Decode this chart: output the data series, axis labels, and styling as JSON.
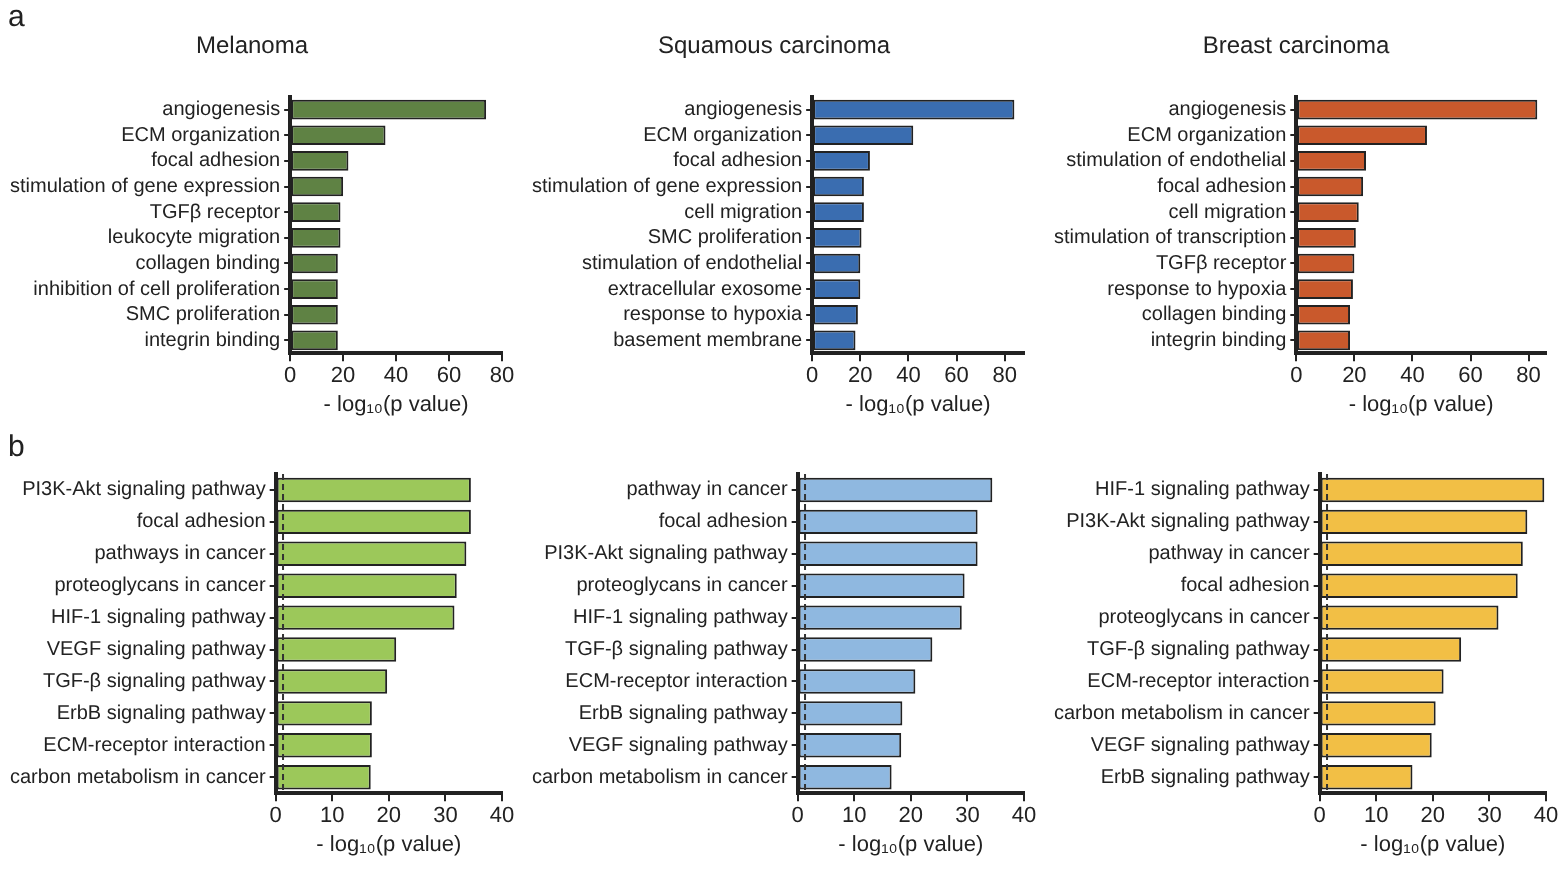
{
  "chart_data": [
    {
      "type": "bar",
      "orientation": "horizontal",
      "title": "Melanoma",
      "xlabel": "- log₁₀(p value)",
      "annotations": [
        "a"
      ],
      "categories": [
        "angiogenesis",
        "ECM organization",
        "focal adhesion",
        "stimulation of gene expression",
        "TGFβ receptor",
        "leukocyte migration",
        "collagen binding",
        "inhibition of cell proliferation",
        "SMC proliferation",
        "integrin binding"
      ],
      "values": [
        74,
        36,
        22,
        20,
        19,
        19,
        18,
        18,
        18,
        18
      ],
      "color": "#5f8244",
      "xlim": [
        0,
        80
      ],
      "xticks": [
        0,
        20,
        40,
        60,
        80
      ]
    },
    {
      "type": "bar",
      "orientation": "horizontal",
      "title": "Squamous carcinoma",
      "xlabel": "- log₁₀(p value)",
      "categories": [
        "angiogenesis",
        "ECM organization",
        "focal adhesion",
        "stimulation of gene expression",
        "cell migration",
        "SMC proliferation",
        "stimulation of endothelial",
        "extracellular exosome",
        "response to hypoxia",
        "basement membrane"
      ],
      "values": [
        84,
        42,
        24,
        21.5,
        21.5,
        20.5,
        20,
        20,
        19,
        18
      ],
      "color": "#3a6db0",
      "xlim": [
        0,
        88
      ],
      "xticks": [
        0,
        20,
        40,
        60,
        80
      ]
    },
    {
      "type": "bar",
      "orientation": "horizontal",
      "title": "Breast carcinoma",
      "xlabel": "- log₁₀(p value)",
      "categories": [
        "angiogenesis",
        "ECM organization",
        "stimulation of endothelial",
        "focal adhesion",
        "cell migration",
        "stimulation of transcription",
        "TGFβ receptor",
        "response to hypoxia",
        "collagen binding",
        "integrin binding"
      ],
      "values": [
        83,
        45,
        24,
        23,
        21.5,
        20.5,
        20,
        19.5,
        18.5,
        18.5
      ],
      "color": "#c9592c",
      "xlim": [
        0,
        86
      ],
      "xticks": [
        0,
        20,
        40,
        60,
        80
      ]
    },
    {
      "type": "bar",
      "orientation": "horizontal",
      "xlabel": "- log₁₀(p value)",
      "annotations": [
        "b"
      ],
      "categories": [
        "PI3K-Akt signaling pathway",
        "focal adhesion",
        "pathways in cancer",
        "proteoglycans in cancer",
        "HIF-1 signaling pathway",
        "VEGF signaling pathway",
        "TGF-β signaling pathway",
        "ErbB signaling pathway",
        "ECM-receptor interaction",
        "carbon metabolism in cancer"
      ],
      "values": [
        34.5,
        34.5,
        33.7,
        32,
        31.6,
        21.3,
        19.7,
        17,
        17,
        16.8
      ],
      "color": "#9cc85a",
      "xlim": [
        0,
        40
      ],
      "xticks": [
        0,
        10,
        20,
        30,
        40
      ],
      "ref_lines": [
        {
          "axis": "x",
          "value": 1.3,
          "line_style": "dashed",
          "color": "#333333"
        }
      ]
    },
    {
      "type": "bar",
      "orientation": "horizontal",
      "xlabel": "- log₁₀(p value)",
      "categories": [
        "pathway in cancer",
        "focal adhesion",
        "PI3K-Akt signaling pathway",
        "proteoglycans in cancer",
        "HIF-1 signaling pathway",
        "TGF-β signaling pathway",
        "ECM-receptor interaction",
        "ErbB signaling pathway",
        "VEGF signaling pathway",
        "carbon metabolism in cancer"
      ],
      "values": [
        34.4,
        31.8,
        31.8,
        29.5,
        29,
        23.8,
        20.8,
        18.5,
        18.3,
        16.6
      ],
      "color": "#8fb8e0",
      "xlim": [
        0,
        40
      ],
      "xticks": [
        0,
        10,
        20,
        30,
        40
      ],
      "ref_lines": [
        {
          "axis": "x",
          "value": 1.3,
          "line_style": "dashed",
          "color": "#333333"
        }
      ]
    },
    {
      "type": "bar",
      "orientation": "horizontal",
      "xlabel": "- log₁₀(p value)",
      "categories": [
        "HIF-1 signaling pathway",
        "PI3K-Akt signaling pathway",
        "pathway in cancer",
        "focal adhesion",
        "proteoglycans in cancer",
        "TGF-β signaling pathway",
        "ECM-receptor interaction",
        "carbon metabolism in cancer",
        "VEGF signaling pathway",
        "ErbB signaling pathway"
      ],
      "values": [
        39.7,
        36.7,
        35.9,
        35,
        31.6,
        25,
        21.9,
        20.5,
        19.8,
        16.4
      ],
      "color": "#f2bf45",
      "xlim": [
        0,
        40
      ],
      "xticks": [
        0,
        10,
        20,
        30,
        40
      ],
      "ref_lines": [
        {
          "axis": "x",
          "value": 1.3,
          "line_style": "dashed",
          "color": "#333333"
        }
      ]
    }
  ]
}
